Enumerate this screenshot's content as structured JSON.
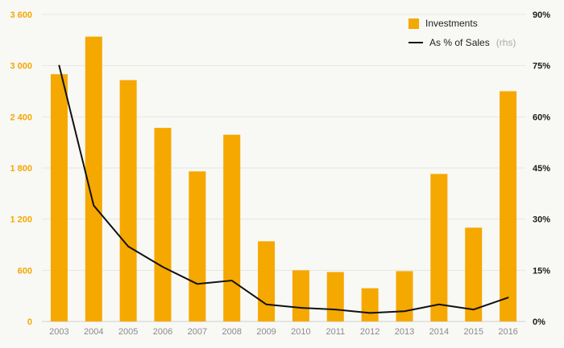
{
  "chart_data": {
    "type": "bar",
    "categories": [
      "2003",
      "2004",
      "2005",
      "2006",
      "2007",
      "2008",
      "2009",
      "2010",
      "2011",
      "2012",
      "2013",
      "2014",
      "2015",
      "2016"
    ],
    "series": [
      {
        "name": "Investments",
        "render": "bar",
        "axis": "left",
        "color": "#F5A800",
        "values": [
          2900,
          3340,
          2830,
          2270,
          1760,
          2190,
          940,
          600,
          580,
          390,
          590,
          1730,
          1100,
          2700
        ]
      },
      {
        "name": "As % of Sales",
        "render": "line",
        "axis": "right",
        "color": "#111111",
        "values": [
          75,
          34,
          22,
          16,
          11,
          12,
          5,
          4,
          3.5,
          2.5,
          3,
          5,
          3.5,
          7
        ]
      }
    ],
    "left_axis": {
      "min": 0,
      "max": 3600,
      "step": 600,
      "tick_labels": [
        "0",
        "600",
        "1 200",
        "1 800",
        "2 400",
        "3 000",
        "3 600"
      ],
      "color": "#F5A800"
    },
    "right_axis": {
      "min": 0,
      "max": 90,
      "step": 15,
      "tick_labels": [
        "0%",
        "15%",
        "30%",
        "45%",
        "60%",
        "75%",
        "90%"
      ],
      "color": "#1a1a1a"
    },
    "legend": [
      {
        "label": "Investments",
        "swatch": "square",
        "color": "#F5A800"
      },
      {
        "label": "As % of Sales",
        "suffix": "(rhs)",
        "swatch": "line",
        "color": "#111111"
      }
    ],
    "grid": true,
    "gridline_color": "#e6e6e3",
    "baseline_color": "#cfcfcc",
    "x_label_color": "#8a8a8a",
    "legend_position": "top-right",
    "background": "#f8f8f5"
  }
}
